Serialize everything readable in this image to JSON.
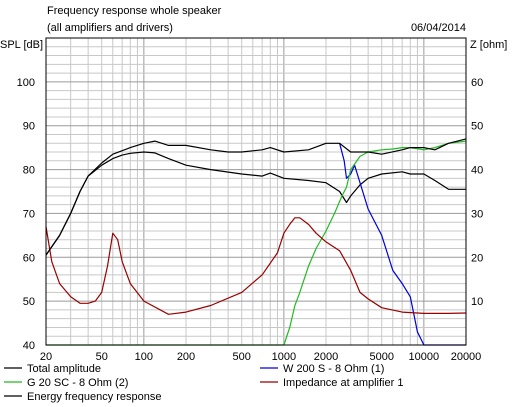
{
  "chart_data": {
    "type": "line",
    "title": "Frequency response whole speaker",
    "subtitle": "(all amplifiers and drivers)",
    "date": "06/04/2014",
    "ylabel": "SPL [dB]",
    "y2label": "Z [ohm]",
    "xscale": "log",
    "xlim": [
      20,
      20000
    ],
    "ylim": [
      40,
      110
    ],
    "y2lim": [
      0,
      70
    ],
    "grid": true,
    "x_ticks": [
      20,
      50,
      100,
      200,
      500,
      1000,
      2000,
      5000,
      10000,
      20000
    ],
    "x_tick_labels": [
      "20",
      "50",
      "100",
      "200",
      "500",
      "1000",
      "2000",
      "5000",
      "10000",
      "20000"
    ],
    "y_ticks": [
      40,
      50,
      60,
      70,
      80,
      90,
      100
    ],
    "y_tick_labels": [
      "40",
      "50",
      "60",
      "70",
      "80",
      "90",
      "100"
    ],
    "y2_ticks": [
      10,
      20,
      30,
      40,
      50,
      60
    ],
    "y2_tick_labels": [
      "10",
      "20",
      "30",
      "40",
      "50",
      "60"
    ],
    "legend_placement": "bottom",
    "series": [
      {
        "name": "Total amplitude",
        "color": "#000000",
        "axis": "left",
        "points": [
          [
            20,
            60.5
          ],
          [
            25,
            65
          ],
          [
            30,
            70
          ],
          [
            35,
            75
          ],
          [
            40,
            78.5
          ],
          [
            50,
            81
          ],
          [
            60,
            82.5
          ],
          [
            70,
            83.3
          ],
          [
            80,
            83.7
          ],
          [
            100,
            84
          ],
          [
            120,
            83.8
          ],
          [
            150,
            82.5
          ],
          [
            200,
            81
          ],
          [
            300,
            80
          ],
          [
            500,
            79
          ],
          [
            700,
            78.5
          ],
          [
            800,
            79.2
          ],
          [
            1000,
            78
          ],
          [
            1500,
            77.5
          ],
          [
            2000,
            77
          ],
          [
            2500,
            75
          ],
          [
            2800,
            72.5
          ],
          [
            3000,
            74
          ],
          [
            3500,
            76.5
          ],
          [
            4000,
            78
          ],
          [
            5000,
            79
          ],
          [
            7000,
            79.5
          ],
          [
            8000,
            79
          ],
          [
            10000,
            79
          ],
          [
            12000,
            77.5
          ],
          [
            15000,
            75.5
          ],
          [
            20000,
            75.5
          ]
        ]
      },
      {
        "name": "W 200 S - 8 Ohm (1)",
        "color": "#0000dd",
        "axis": "left",
        "points": [
          [
            2500,
            86
          ],
          [
            2700,
            82
          ],
          [
            2800,
            78
          ],
          [
            3000,
            79
          ],
          [
            3200,
            81
          ],
          [
            3500,
            77
          ],
          [
            4000,
            71
          ],
          [
            5000,
            65
          ],
          [
            6000,
            57
          ],
          [
            7000,
            54
          ],
          [
            8000,
            51
          ],
          [
            9000,
            43
          ],
          [
            10000,
            40
          ],
          [
            20000,
            40
          ]
        ]
      },
      {
        "name": "G 20 SC - 8 Ohm (2)",
        "color": "#22bb22",
        "axis": "left",
        "points": [
          [
            20,
            40
          ],
          [
            1000,
            40
          ],
          [
            1100,
            44
          ],
          [
            1200,
            49
          ],
          [
            1300,
            52
          ],
          [
            1500,
            58
          ],
          [
            1700,
            62
          ],
          [
            2000,
            66
          ],
          [
            2300,
            70
          ],
          [
            2600,
            74
          ],
          [
            2800,
            76
          ],
          [
            3000,
            80
          ],
          [
            3500,
            83
          ],
          [
            4000,
            84
          ],
          [
            5000,
            84.5
          ],
          [
            6000,
            84.7
          ],
          [
            7000,
            85
          ],
          [
            8000,
            85
          ],
          [
            10000,
            84.5
          ],
          [
            12000,
            85
          ],
          [
            15000,
            86
          ],
          [
            20000,
            86.5
          ]
        ]
      },
      {
        "name": "Impedance at amplifier 1",
        "color": "#990000",
        "axis": "right",
        "points": [
          [
            20,
            27
          ],
          [
            22,
            19
          ],
          [
            25,
            14
          ],
          [
            30,
            11
          ],
          [
            35,
            9.5
          ],
          [
            40,
            9.5
          ],
          [
            45,
            10
          ],
          [
            50,
            12
          ],
          [
            55,
            18
          ],
          [
            60,
            25.5
          ],
          [
            65,
            24
          ],
          [
            70,
            19
          ],
          [
            80,
            14
          ],
          [
            100,
            10
          ],
          [
            150,
            7
          ],
          [
            200,
            7.5
          ],
          [
            300,
            9
          ],
          [
            500,
            12
          ],
          [
            700,
            16
          ],
          [
            900,
            21
          ],
          [
            1000,
            25.5
          ],
          [
            1100,
            27.5
          ],
          [
            1200,
            29
          ],
          [
            1300,
            29
          ],
          [
            1500,
            27.5
          ],
          [
            1700,
            25.5
          ],
          [
            2000,
            23.5
          ],
          [
            2500,
            21.5
          ],
          [
            3000,
            17
          ],
          [
            3500,
            12
          ],
          [
            4000,
            10.5
          ],
          [
            5000,
            8.5
          ],
          [
            7000,
            7.5
          ],
          [
            10000,
            7.2
          ],
          [
            15000,
            7.2
          ],
          [
            20000,
            7.3
          ]
        ]
      },
      {
        "name": "Energy frequency response",
        "color": "#000000",
        "axis": "left",
        "points": [
          [
            20,
            60.5
          ],
          [
            25,
            65
          ],
          [
            30,
            70
          ],
          [
            35,
            75
          ],
          [
            40,
            78.5
          ],
          [
            50,
            81.5
          ],
          [
            60,
            83.5
          ],
          [
            70,
            84.3
          ],
          [
            80,
            85
          ],
          [
            100,
            86
          ],
          [
            120,
            86.5
          ],
          [
            150,
            85.5
          ],
          [
            200,
            85.5
          ],
          [
            300,
            84.5
          ],
          [
            400,
            84
          ],
          [
            500,
            84
          ],
          [
            700,
            84.5
          ],
          [
            800,
            85
          ],
          [
            1000,
            84
          ],
          [
            1500,
            84.5
          ],
          [
            2000,
            86
          ],
          [
            2500,
            86
          ],
          [
            3000,
            84
          ],
          [
            3500,
            84
          ],
          [
            4000,
            84
          ],
          [
            5000,
            83.5
          ],
          [
            7000,
            84.5
          ],
          [
            8000,
            85
          ],
          [
            10000,
            85
          ],
          [
            12000,
            84.5
          ],
          [
            15000,
            86
          ],
          [
            20000,
            87
          ]
        ]
      }
    ]
  }
}
